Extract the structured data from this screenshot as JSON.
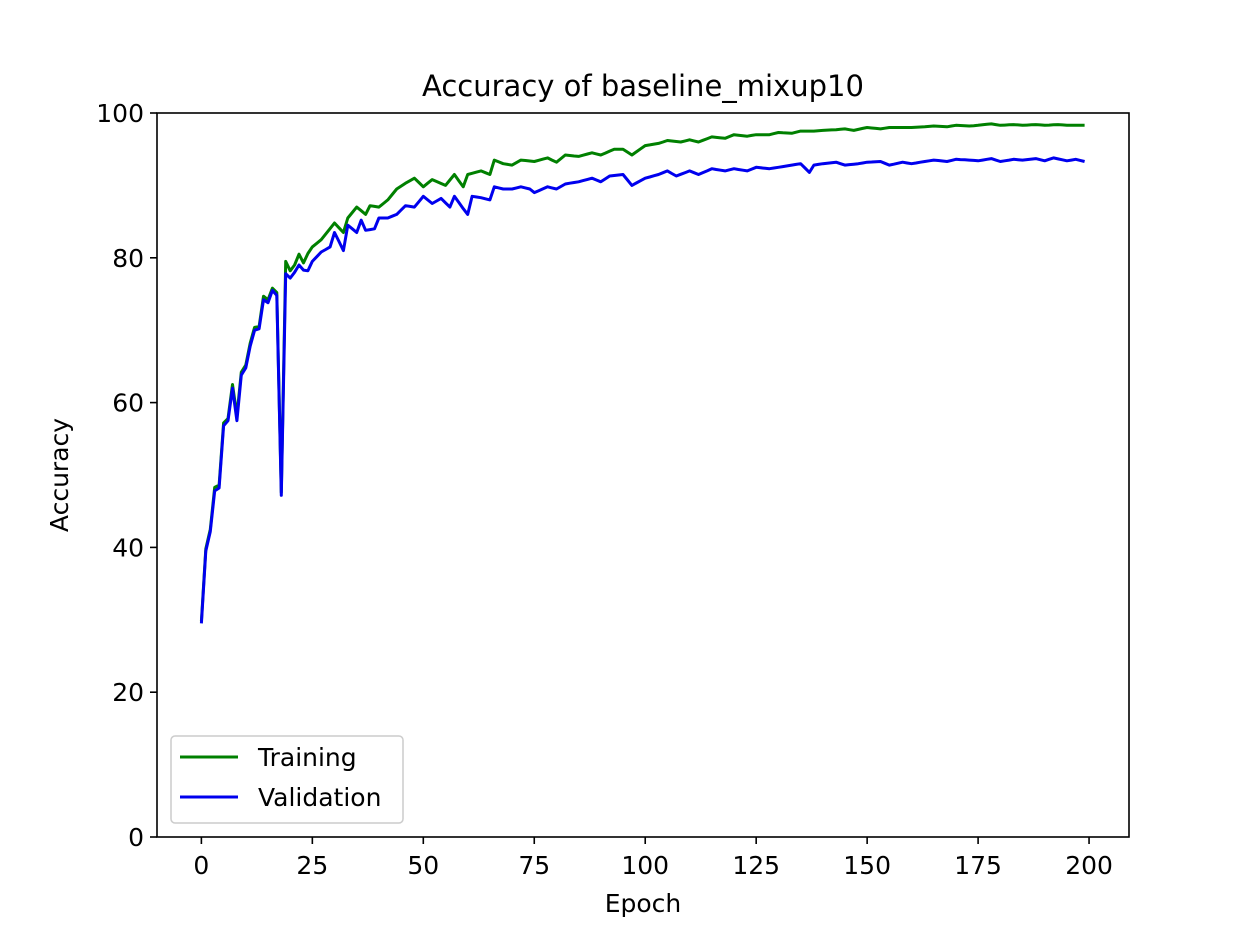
{
  "chart_data": {
    "type": "line",
    "title": "Accuracy of baseline_mixup10",
    "xlabel": "Epoch",
    "ylabel": "Accuracy",
    "xlim": [
      -10,
      209
    ],
    "ylim": [
      0,
      100
    ],
    "xticks": [
      0,
      25,
      50,
      75,
      100,
      125,
      150,
      175,
      200
    ],
    "yticks": [
      0,
      20,
      40,
      60,
      80,
      100
    ],
    "grid": false,
    "legend_position": "lower-left",
    "series": [
      {
        "name": "Training",
        "color": "#008000",
        "anchors": [
          [
            0,
            29.8
          ],
          [
            1,
            39.8
          ],
          [
            2,
            42.5
          ],
          [
            3,
            48.3
          ],
          [
            4,
            48.6
          ],
          [
            5,
            57.2
          ],
          [
            6,
            57.8
          ],
          [
            7,
            62.5
          ],
          [
            8,
            58.2
          ],
          [
            9,
            64.2
          ],
          [
            10,
            65.2
          ],
          [
            11,
            68.2
          ],
          [
            12,
            70.4
          ],
          [
            13,
            70.5
          ],
          [
            14,
            74.7
          ],
          [
            15,
            74.2
          ],
          [
            16,
            75.8
          ],
          [
            17,
            75.2
          ],
          [
            18,
            47.6
          ],
          [
            19,
            79.5
          ],
          [
            20,
            78.2
          ],
          [
            21,
            79.0
          ],
          [
            22,
            80.5
          ],
          [
            23,
            79.3
          ],
          [
            24,
            80.6
          ],
          [
            25,
            81.5
          ],
          [
            27,
            82.5
          ],
          [
            30,
            84.8
          ],
          [
            32,
            83.5
          ],
          [
            33,
            85.5
          ],
          [
            35,
            87.0
          ],
          [
            37,
            86.0
          ],
          [
            38,
            87.2
          ],
          [
            40,
            87.0
          ],
          [
            42,
            88.0
          ],
          [
            44,
            89.5
          ],
          [
            46,
            90.3
          ],
          [
            48,
            91.0
          ],
          [
            50,
            89.8
          ],
          [
            52,
            90.8
          ],
          [
            55,
            90.0
          ],
          [
            57,
            91.5
          ],
          [
            59,
            89.8
          ],
          [
            60,
            91.5
          ],
          [
            63,
            92.0
          ],
          [
            65,
            91.5
          ],
          [
            66,
            93.5
          ],
          [
            68,
            93.0
          ],
          [
            70,
            92.8
          ],
          [
            72,
            93.5
          ],
          [
            75,
            93.3
          ],
          [
            78,
            93.8
          ],
          [
            80,
            93.2
          ],
          [
            82,
            94.2
          ],
          [
            85,
            94.0
          ],
          [
            88,
            94.5
          ],
          [
            90,
            94.2
          ],
          [
            93,
            95.0
          ],
          [
            95,
            95.0
          ],
          [
            97,
            94.2
          ],
          [
            100,
            95.5
          ],
          [
            103,
            95.8
          ],
          [
            105,
            96.2
          ],
          [
            108,
            96.0
          ],
          [
            110,
            96.3
          ],
          [
            112,
            96.0
          ],
          [
            115,
            96.7
          ],
          [
            118,
            96.5
          ],
          [
            120,
            97.0
          ],
          [
            123,
            96.8
          ],
          [
            125,
            97.0
          ],
          [
            128,
            97.0
          ],
          [
            130,
            97.3
          ],
          [
            133,
            97.2
          ],
          [
            135,
            97.5
          ],
          [
            138,
            97.5
          ],
          [
            140,
            97.6
          ],
          [
            143,
            97.7
          ],
          [
            145,
            97.8
          ],
          [
            147,
            97.6
          ],
          [
            150,
            98.0
          ],
          [
            153,
            97.8
          ],
          [
            155,
            98.0
          ],
          [
            158,
            98.0
          ],
          [
            160,
            98.0
          ],
          [
            163,
            98.1
          ],
          [
            165,
            98.2
          ],
          [
            168,
            98.1
          ],
          [
            170,
            98.3
          ],
          [
            173,
            98.2
          ],
          [
            175,
            98.3
          ],
          [
            178,
            98.5
          ],
          [
            180,
            98.3
          ],
          [
            183,
            98.4
          ],
          [
            185,
            98.3
          ],
          [
            188,
            98.4
          ],
          [
            190,
            98.3
          ],
          [
            193,
            98.4
          ],
          [
            195,
            98.3
          ],
          [
            199,
            98.3
          ]
        ]
      },
      {
        "name": "Validation",
        "color": "#0000ee",
        "anchors": [
          [
            0,
            29.5
          ],
          [
            1,
            39.5
          ],
          [
            2,
            42.2
          ],
          [
            3,
            47.8
          ],
          [
            4,
            48.2
          ],
          [
            5,
            56.8
          ],
          [
            6,
            57.5
          ],
          [
            7,
            62.0
          ],
          [
            8,
            57.5
          ],
          [
            9,
            63.8
          ],
          [
            10,
            64.8
          ],
          [
            11,
            67.8
          ],
          [
            12,
            70.0
          ],
          [
            13,
            70.2
          ],
          [
            14,
            74.2
          ],
          [
            15,
            73.8
          ],
          [
            16,
            75.5
          ],
          [
            17,
            74.8
          ],
          [
            18,
            47.2
          ],
          [
            19,
            77.8
          ],
          [
            20,
            77.2
          ],
          [
            21,
            78.0
          ],
          [
            22,
            79.0
          ],
          [
            23,
            78.3
          ],
          [
            24,
            78.2
          ],
          [
            25,
            79.5
          ],
          [
            27,
            80.8
          ],
          [
            29,
            81.5
          ],
          [
            30,
            83.5
          ],
          [
            32,
            81.0
          ],
          [
            33,
            84.5
          ],
          [
            35,
            83.5
          ],
          [
            36,
            85.2
          ],
          [
            37,
            83.8
          ],
          [
            39,
            84.0
          ],
          [
            40,
            85.5
          ],
          [
            42,
            85.5
          ],
          [
            44,
            86.0
          ],
          [
            46,
            87.2
          ],
          [
            48,
            87.0
          ],
          [
            50,
            88.5
          ],
          [
            52,
            87.5
          ],
          [
            54,
            88.2
          ],
          [
            56,
            87.0
          ],
          [
            57,
            88.5
          ],
          [
            59,
            86.8
          ],
          [
            60,
            86.0
          ],
          [
            61,
            88.5
          ],
          [
            63,
            88.3
          ],
          [
            65,
            88.0
          ],
          [
            66,
            89.8
          ],
          [
            68,
            89.5
          ],
          [
            70,
            89.5
          ],
          [
            72,
            89.8
          ],
          [
            74,
            89.5
          ],
          [
            75,
            89.0
          ],
          [
            78,
            89.8
          ],
          [
            80,
            89.5
          ],
          [
            82,
            90.2
          ],
          [
            85,
            90.5
          ],
          [
            88,
            91.0
          ],
          [
            90,
            90.5
          ],
          [
            92,
            91.3
          ],
          [
            95,
            91.5
          ],
          [
            97,
            90.0
          ],
          [
            100,
            91.0
          ],
          [
            103,
            91.5
          ],
          [
            105,
            92.0
          ],
          [
            107,
            91.3
          ],
          [
            110,
            92.0
          ],
          [
            112,
            91.5
          ],
          [
            115,
            92.3
          ],
          [
            118,
            92.0
          ],
          [
            120,
            92.3
          ],
          [
            123,
            92.0
          ],
          [
            125,
            92.5
          ],
          [
            128,
            92.3
          ],
          [
            130,
            92.5
          ],
          [
            133,
            92.8
          ],
          [
            135,
            93.0
          ],
          [
            137,
            91.8
          ],
          [
            138,
            92.8
          ],
          [
            140,
            93.0
          ],
          [
            143,
            93.2
          ],
          [
            145,
            92.8
          ],
          [
            148,
            93.0
          ],
          [
            150,
            93.2
          ],
          [
            153,
            93.3
          ],
          [
            155,
            92.8
          ],
          [
            158,
            93.2
          ],
          [
            160,
            93.0
          ],
          [
            163,
            93.3
          ],
          [
            165,
            93.5
          ],
          [
            168,
            93.3
          ],
          [
            170,
            93.6
          ],
          [
            173,
            93.5
          ],
          [
            175,
            93.4
          ],
          [
            178,
            93.7
          ],
          [
            180,
            93.3
          ],
          [
            183,
            93.6
          ],
          [
            185,
            93.5
          ],
          [
            188,
            93.7
          ],
          [
            190,
            93.4
          ],
          [
            192,
            93.8
          ],
          [
            195,
            93.4
          ],
          [
            197,
            93.6
          ],
          [
            199,
            93.3
          ]
        ]
      }
    ]
  }
}
